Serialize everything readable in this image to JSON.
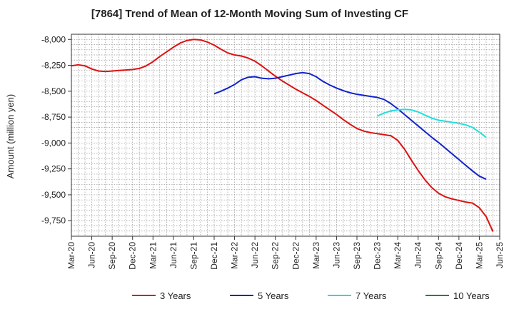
{
  "chart_data": {
    "type": "line",
    "title": "[7864]  Trend of Mean of 12-Month Moving Sum of Investing CF",
    "xlabel": "",
    "ylabel": "Amount (million yen)",
    "ylim": [
      -9900,
      -7950
    ],
    "yticks": [
      -8000,
      -8250,
      -8500,
      -8750,
      -9000,
      -9250,
      -9500,
      -9750
    ],
    "ytick_labels": [
      "-8,000",
      "-8,250",
      "-8,500",
      "-8,750",
      "-9,000",
      "-9,250",
      "-9,500",
      "-9,750"
    ],
    "x_start": "Mar-20",
    "x_end": "Jun-25",
    "xtick_labels": [
      "Mar-20",
      "Jun-20",
      "Sep-20",
      "Dec-20",
      "Mar-21",
      "Jun-21",
      "Sep-21",
      "Dec-21",
      "Mar-22",
      "Jun-22",
      "Sep-22",
      "Dec-22",
      "Mar-23",
      "Jun-23",
      "Sep-23",
      "Dec-23",
      "Mar-24",
      "Jun-24",
      "Sep-24",
      "Dec-24",
      "Mar-25",
      "Jun-25"
    ],
    "grid": true,
    "legend_position": "bottom",
    "series": [
      {
        "name": "3 Years",
        "color": "#dd1111",
        "start_month_index": 0,
        "values": [
          -8255,
          -8245,
          -8255,
          -8285,
          -8305,
          -8310,
          -8305,
          -8300,
          -8295,
          -8290,
          -8280,
          -8255,
          -8215,
          -8165,
          -8120,
          -8075,
          -8035,
          -8010,
          -8000,
          -8005,
          -8025,
          -8055,
          -8095,
          -8130,
          -8150,
          -8160,
          -8180,
          -8210,
          -8255,
          -8305,
          -8355,
          -8400,
          -8440,
          -8480,
          -8515,
          -8550,
          -8590,
          -8635,
          -8680,
          -8725,
          -8775,
          -8820,
          -8860,
          -8885,
          -8900,
          -8910,
          -8920,
          -8930,
          -8975,
          -9060,
          -9165,
          -9265,
          -9355,
          -9430,
          -9485,
          -9520,
          -9540,
          -9555,
          -9570,
          -9580,
          -9625,
          -9710,
          -9855
        ]
      },
      {
        "name": "5 Years",
        "color": "#1122cc",
        "start_month_index": 21,
        "values": [
          -8525,
          -8500,
          -8470,
          -8435,
          -8390,
          -8365,
          -8360,
          -8375,
          -8380,
          -8375,
          -8360,
          -8345,
          -8330,
          -8320,
          -8330,
          -8360,
          -8405,
          -8440,
          -8470,
          -8495,
          -8515,
          -8530,
          -8540,
          -8550,
          -8560,
          -8580,
          -8620,
          -8670,
          -8725,
          -8780,
          -8835,
          -8890,
          -8945,
          -8995,
          -9050,
          -9105,
          -9160,
          -9215,
          -9270,
          -9320,
          -9350
        ]
      },
      {
        "name": "7 Years",
        "color": "#22dddd",
        "start_month_index": 45,
        "values": [
          -8740,
          -8710,
          -8690,
          -8680,
          -8675,
          -8680,
          -8700,
          -8730,
          -8760,
          -8780,
          -8790,
          -8800,
          -8810,
          -8825,
          -8850,
          -8895,
          -8945
        ]
      },
      {
        "name": "10 Years",
        "color": "#228822",
        "start_month_index": 0,
        "values": []
      }
    ]
  }
}
